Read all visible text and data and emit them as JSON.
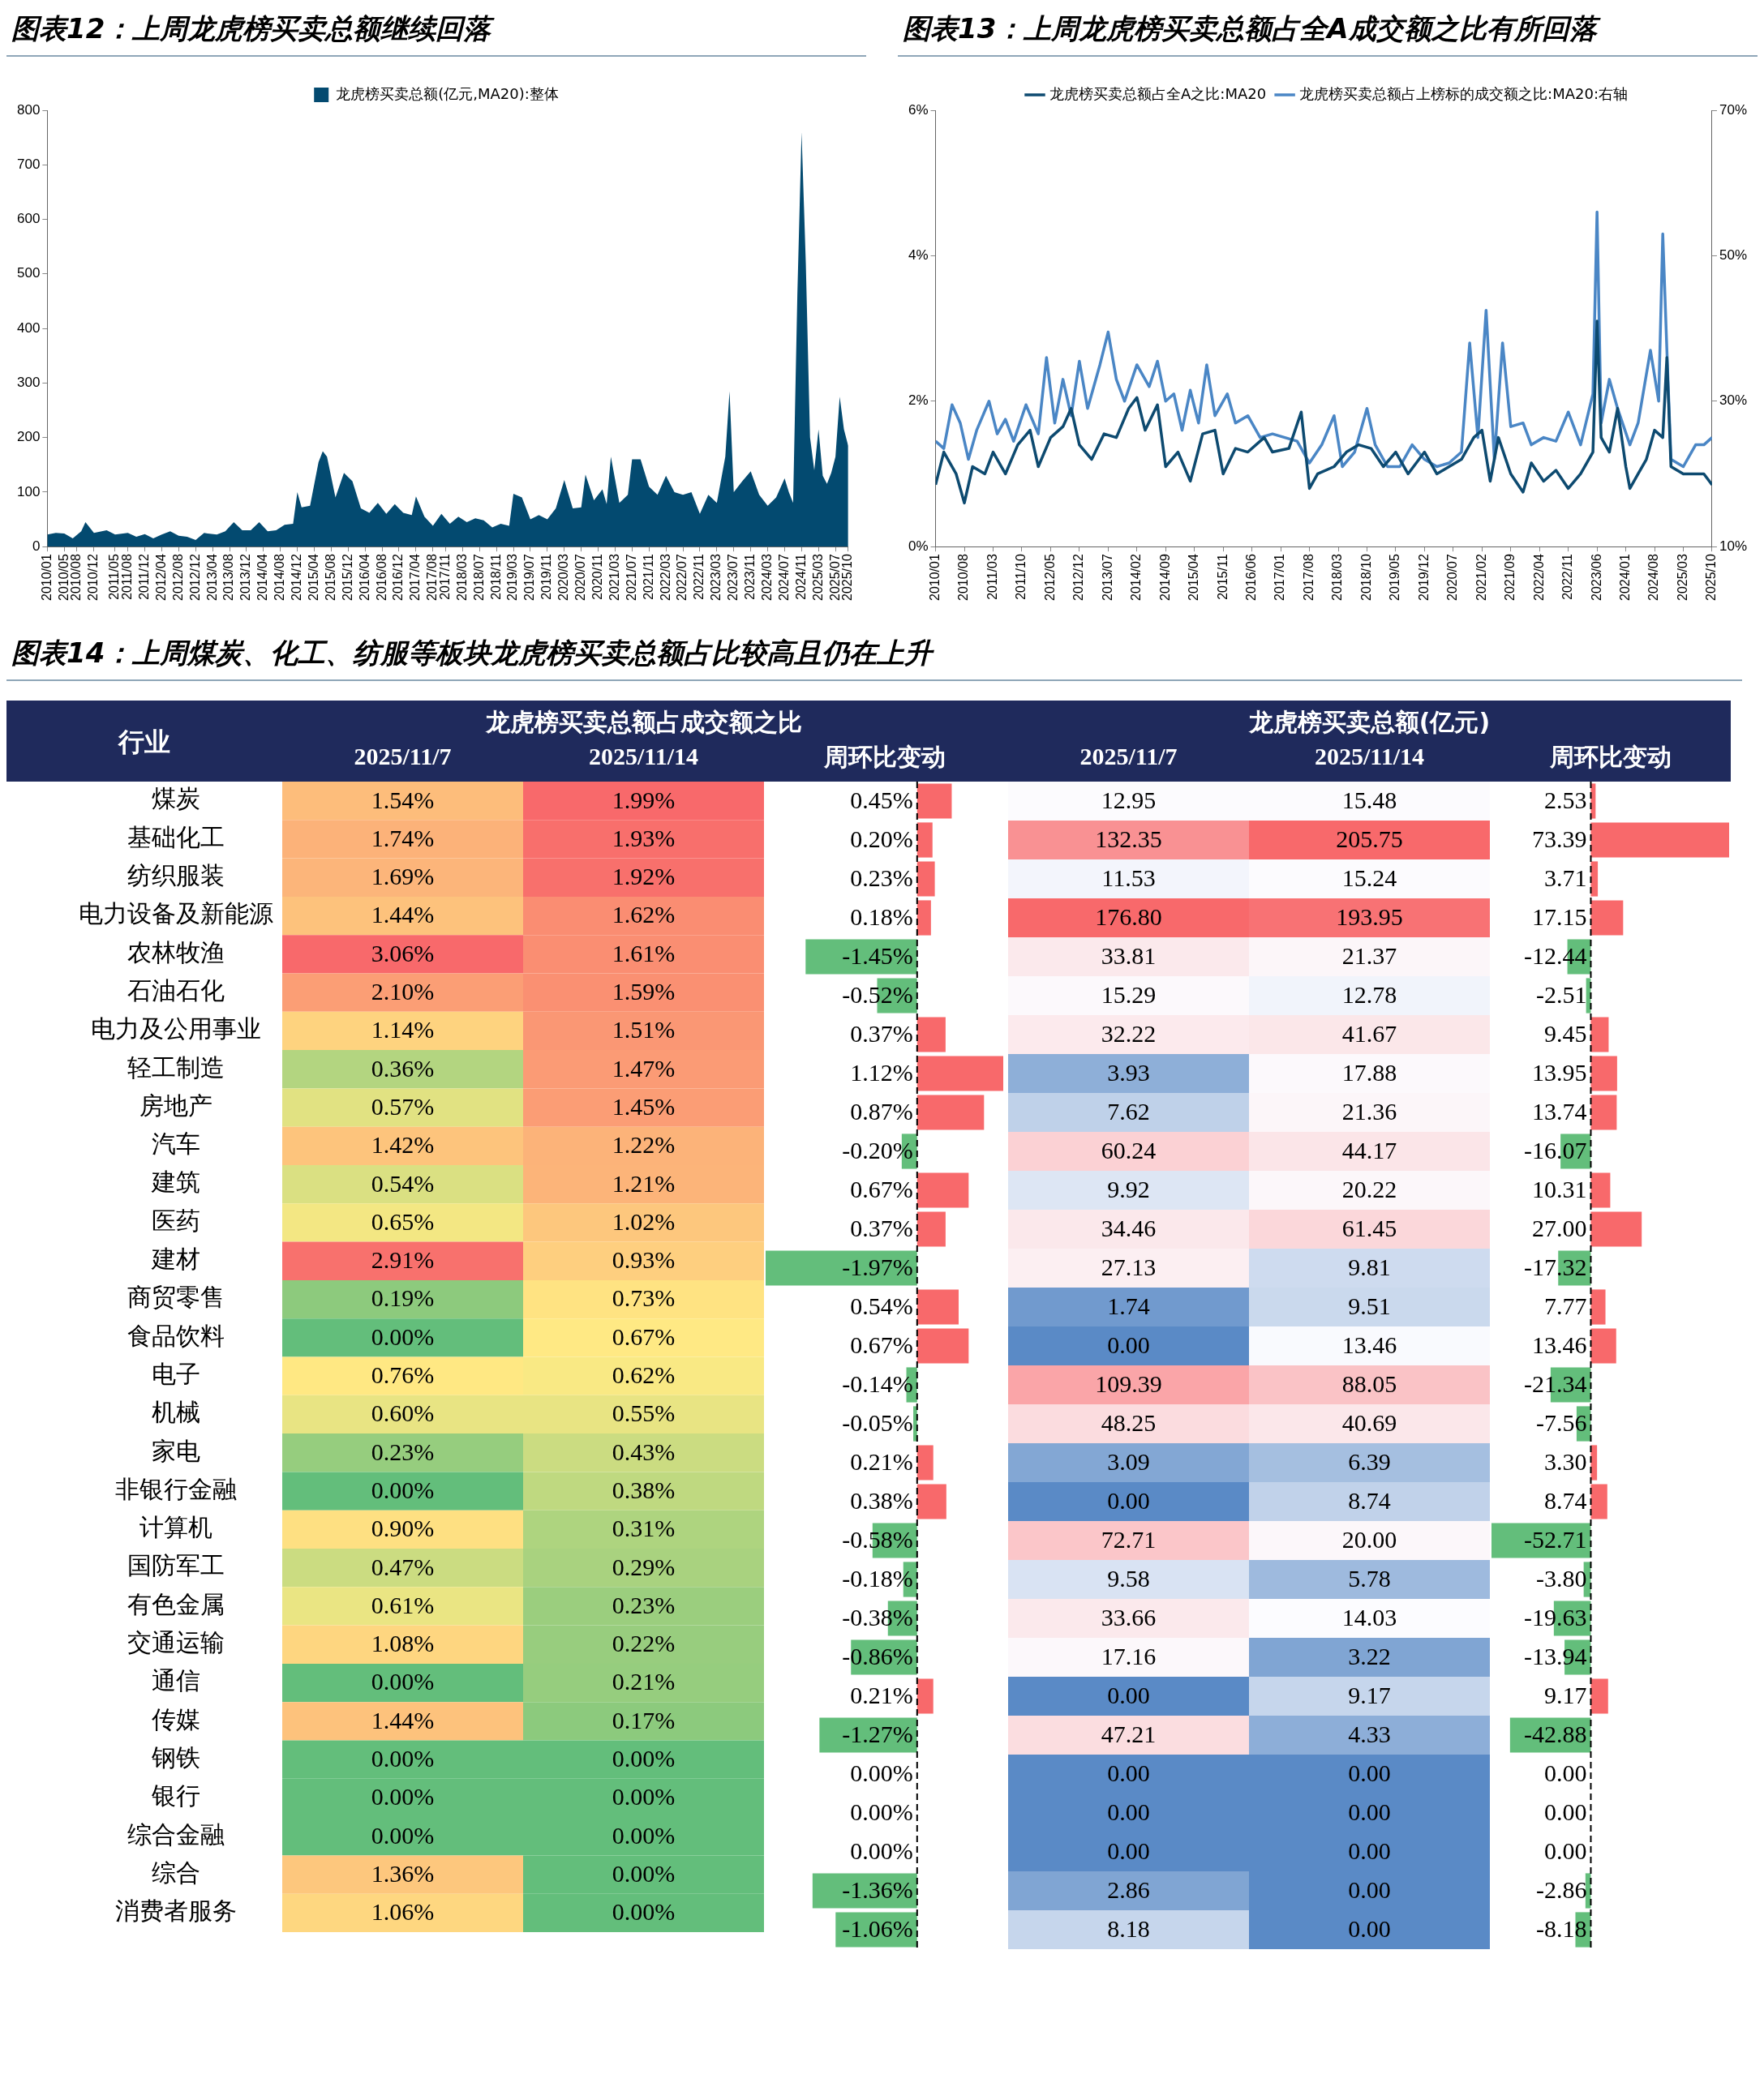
{
  "chart_data": [
    {
      "type": "area",
      "title": "图表12：上周龙虎榜买卖总额继续回落",
      "legend": "top",
      "ylim": [
        0,
        800
      ],
      "yticks": [
        0,
        100,
        200,
        300,
        400,
        500,
        600,
        700,
        800
      ],
      "xlim": [
        "2010-01",
        "2025-10"
      ],
      "xticks": [
        {
          "value": "2010-01",
          "label": "2010/01"
        },
        {
          "value": "2010-05",
          "label": "2010/05"
        },
        {
          "value": "2010-08",
          "label": "2010/08"
        },
        {
          "value": "2010-12",
          "label": "2010/12"
        },
        {
          "value": "2011-05",
          "label": "2011/05"
        },
        {
          "value": "2011-08",
          "label": "2011/08"
        },
        {
          "value": "2011-12",
          "label": "2011/12"
        },
        {
          "value": "2012-04",
          "label": "2012/04"
        },
        {
          "value": "2012-08",
          "label": "2012/08"
        },
        {
          "value": "2012-12",
          "label": "2012/12"
        },
        {
          "value": "2013-04",
          "label": "2013/04"
        },
        {
          "value": "2013-08",
          "label": "2013/08"
        },
        {
          "value": "2013-12",
          "label": "2013/12"
        },
        {
          "value": "2014-04",
          "label": "2014/04"
        },
        {
          "value": "2014-08",
          "label": "2014/08"
        },
        {
          "value": "2014-12",
          "label": "2014/12"
        },
        {
          "value": "2015-04",
          "label": "2015/04"
        },
        {
          "value": "2015-08",
          "label": "2015/08"
        },
        {
          "value": "2015-12",
          "label": "2015/12"
        },
        {
          "value": "2016-04",
          "label": "2016/04"
        },
        {
          "value": "2016-08",
          "label": "2016/08"
        },
        {
          "value": "2016-12",
          "label": "2016/12"
        },
        {
          "value": "2017-04",
          "label": "2017/04"
        },
        {
          "value": "2017-08",
          "label": "2017/08"
        },
        {
          "value": "2017-11",
          "label": "2017/11"
        },
        {
          "value": "2018-03",
          "label": "2018/03"
        },
        {
          "value": "2018-07",
          "label": "2018/07"
        },
        {
          "value": "2018-11",
          "label": "2018/11"
        },
        {
          "value": "2019-03",
          "label": "2019/03"
        },
        {
          "value": "2019-07",
          "label": "2019/07"
        },
        {
          "value": "2019-11",
          "label": "2019/11"
        },
        {
          "value": "2020-03",
          "label": "2020/03"
        },
        {
          "value": "2020-07",
          "label": "2020/07"
        },
        {
          "value": "2020-11",
          "label": "2020/11"
        },
        {
          "value": "2021-03",
          "label": "2021/03"
        },
        {
          "value": "2021-07",
          "label": "2021/07"
        },
        {
          "value": "2021-11",
          "label": "2021/11"
        },
        {
          "value": "2022-03",
          "label": "2022/03"
        },
        {
          "value": "2022-07",
          "label": "2022/07"
        },
        {
          "value": "2022-11",
          "label": "2022/11"
        },
        {
          "value": "2023-03",
          "label": "2023/03"
        },
        {
          "value": "2023-07",
          "label": "2023/07"
        },
        {
          "value": "2023-11",
          "label": "2023/11"
        },
        {
          "value": "2024-03",
          "label": "2024/03"
        },
        {
          "value": "2024-07",
          "label": "2024/07"
        },
        {
          "value": "2024-11",
          "label": "2024/11"
        },
        {
          "value": "2025-03",
          "label": "2025/03"
        },
        {
          "value": "2025-07",
          "label": "2025/07"
        },
        {
          "value": "2025-10",
          "label": "2025/10"
        }
      ],
      "x": [
        "2010-01",
        "2010-03",
        "2010-05",
        "2010-07",
        "2010-09",
        "2010-10",
        "2010-12",
        "2011-03",
        "2011-05",
        "2011-08",
        "2011-10",
        "2011-12",
        "2012-02",
        "2012-04",
        "2012-06",
        "2012-08",
        "2012-10",
        "2012-12",
        "2013-02",
        "2013-05",
        "2013-07",
        "2013-09",
        "2013-11",
        "2014-01",
        "2014-03",
        "2014-05",
        "2014-07",
        "2014-09",
        "2014-11",
        "2014-12",
        "2015-01",
        "2015-03",
        "2015-05",
        "2015-06",
        "2015-07",
        "2015-09",
        "2015-11",
        "2016-01",
        "2016-03",
        "2016-05",
        "2016-07",
        "2016-09",
        "2016-11",
        "2017-01",
        "2017-03",
        "2017-04",
        "2017-06",
        "2017-08",
        "2017-10",
        "2017-12",
        "2018-02",
        "2018-04",
        "2018-06",
        "2018-08",
        "2018-10",
        "2018-12",
        "2019-02",
        "2019-03",
        "2019-05",
        "2019-07",
        "2019-09",
        "2019-11",
        "2020-01",
        "2020-03",
        "2020-05",
        "2020-07",
        "2020-08",
        "2020-10",
        "2020-12",
        "2021-01",
        "2021-02",
        "2021-04",
        "2021-06",
        "2021-07",
        "2021-09",
        "2021-11",
        "2022-01",
        "2022-03",
        "2022-05",
        "2022-07",
        "2022-09",
        "2022-11",
        "2023-01",
        "2023-03",
        "2023-05",
        "2023-06",
        "2023-07",
        "2023-09",
        "2023-11",
        "2024-01",
        "2024-03",
        "2024-05",
        "2024-07",
        "2024-08",
        "2024-09",
        "2024-10",
        "2024-11",
        "2024-12",
        "2025-01",
        "2025-02",
        "2025-03",
        "2025-04",
        "2025-05",
        "2025-06",
        "2025-07",
        "2025-08",
        "2025-09",
        "2025-10"
      ],
      "series": [
        {
          "name": "龙虎榜买卖总额(亿元,MA20):整体",
          "color": "#034a70",
          "values": [
            22,
            25,
            24,
            15,
            28,
            45,
            25,
            30,
            22,
            25,
            18,
            23,
            15,
            22,
            28,
            20,
            18,
            12,
            25,
            22,
            28,
            45,
            30,
            30,
            45,
            28,
            30,
            40,
            42,
            100,
            72,
            75,
            155,
            175,
            165,
            90,
            135,
            120,
            70,
            62,
            80,
            60,
            78,
            62,
            58,
            92,
            55,
            38,
            60,
            42,
            55,
            45,
            52,
            48,
            35,
            42,
            38,
            97,
            90,
            50,
            58,
            50,
            70,
            122,
            70,
            72,
            132,
            85,
            105,
            78,
            165,
            80,
            95,
            160,
            160,
            110,
            95,
            130,
            100,
            95,
            100,
            60,
            95,
            80,
            165,
            285,
            100,
            120,
            138,
            95,
            75,
            90,
            125,
            100,
            80,
            460,
            760,
            520,
            200,
            140,
            215,
            130,
            115,
            135,
            165,
            275,
            215,
            185
          ]
        }
      ]
    },
    {
      "type": "line",
      "title": "图表13：上周龙虎榜买卖总额占全A成交额之比有所回落",
      "legend": "top",
      "ylim": [
        0,
        6
      ],
      "yticks": [
        {
          "value": 0,
          "label": "0%"
        },
        {
          "value": 2,
          "label": "2%"
        },
        {
          "value": 4,
          "label": "4%"
        },
        {
          "value": 6,
          "label": "6%"
        }
      ],
      "y2lim": [
        10,
        70
      ],
      "y2ticks": [
        {
          "value": 10,
          "label": "10%"
        },
        {
          "value": 30,
          "label": "30%"
        },
        {
          "value": 50,
          "label": "50%"
        },
        {
          "value": 70,
          "label": "70%"
        }
      ],
      "xlim": [
        "2010-01",
        "2025-10"
      ],
      "xticks": [
        {
          "value": "2010-01",
          "label": "2010/01"
        },
        {
          "value": "2010-08",
          "label": "2010/08"
        },
        {
          "value": "2011-03",
          "label": "2011/03"
        },
        {
          "value": "2011-10",
          "label": "2011/10"
        },
        {
          "value": "2012-05",
          "label": "2012/05"
        },
        {
          "value": "2012-12",
          "label": "2012/12"
        },
        {
          "value": "2013-07",
          "label": "2013/07"
        },
        {
          "value": "2014-02",
          "label": "2014/02"
        },
        {
          "value": "2014-09",
          "label": "2014/09"
        },
        {
          "value": "2015-04",
          "label": "2015/04"
        },
        {
          "value": "2015-11",
          "label": "2015/11"
        },
        {
          "value": "2016-06",
          "label": "2016/06"
        },
        {
          "value": "2017-01",
          "label": "2017/01"
        },
        {
          "value": "2017-08",
          "label": "2017/08"
        },
        {
          "value": "2018-03",
          "label": "2018/03"
        },
        {
          "value": "2018-10",
          "label": "2018/10"
        },
        {
          "value": "2019-05",
          "label": "2019/05"
        },
        {
          "value": "2019-12",
          "label": "2019/12"
        },
        {
          "value": "2020-07",
          "label": "2020/07"
        },
        {
          "value": "2021-02",
          "label": "2021/02"
        },
        {
          "value": "2021-09",
          "label": "2021/09"
        },
        {
          "value": "2022-04",
          "label": "2022/04"
        },
        {
          "value": "2022-11",
          "label": "2022/11"
        },
        {
          "value": "2023-06",
          "label": "2023/06"
        },
        {
          "value": "2024-01",
          "label": "2024/01"
        },
        {
          "value": "2024-08",
          "label": "2024/08"
        },
        {
          "value": "2025-03",
          "label": "2025/03"
        },
        {
          "value": "2025-10",
          "label": "2025/10"
        }
      ],
      "series": [
        {
          "name": "龙虎榜买卖总额占全A之比:MA20",
          "color": "#0d4a70",
          "x": [
            "2010-01",
            "2010-03",
            "2010-06",
            "2010-08",
            "2010-10",
            "2011-01",
            "2011-03",
            "2011-06",
            "2011-09",
            "2011-12",
            "2012-02",
            "2012-05",
            "2012-08",
            "2012-10",
            "2012-12",
            "2013-03",
            "2013-06",
            "2013-09",
            "2013-12",
            "2014-02",
            "2014-04",
            "2014-07",
            "2014-09",
            "2014-12",
            "2015-03",
            "2015-06",
            "2015-09",
            "2015-11",
            "2016-02",
            "2016-05",
            "2016-09",
            "2016-11",
            "2017-03",
            "2017-06",
            "2017-08",
            "2017-10",
            "2018-02",
            "2018-05",
            "2018-08",
            "2018-11",
            "2019-02",
            "2019-05",
            "2019-08",
            "2019-12",
            "2020-03",
            "2020-06",
            "2020-09",
            "2020-12",
            "2021-02",
            "2021-04",
            "2021-06",
            "2021-09",
            "2021-12",
            "2022-02",
            "2022-05",
            "2022-08",
            "2022-11",
            "2023-02",
            "2023-05",
            "2023-06",
            "2023-07",
            "2023-09",
            "2023-11",
            "2024-01",
            "2024-02",
            "2024-04",
            "2024-06",
            "2024-08",
            "2024-10",
            "2024-11",
            "2024-12",
            "2025-03",
            "2025-06",
            "2025-08",
            "2025-10"
          ],
          "values": [
            0.85,
            1.3,
            1.0,
            0.6,
            1.1,
            1.0,
            1.3,
            1.0,
            1.4,
            1.6,
            1.1,
            1.5,
            1.65,
            1.9,
            1.4,
            1.2,
            1.55,
            1.5,
            1.9,
            2.05,
            1.6,
            1.95,
            1.1,
            1.3,
            0.9,
            1.55,
            1.6,
            1.0,
            1.35,
            1.3,
            1.5,
            1.3,
            1.35,
            1.85,
            0.8,
            1.0,
            1.1,
            1.3,
            1.4,
            1.35,
            1.1,
            1.3,
            1.0,
            1.3,
            1.0,
            1.1,
            1.2,
            1.5,
            1.6,
            0.9,
            1.5,
            1.0,
            0.75,
            1.15,
            0.9,
            1.05,
            0.8,
            1.0,
            1.3,
            3.1,
            1.5,
            1.3,
            1.9,
            1.1,
            0.8,
            1.0,
            1.2,
            1.6,
            1.5,
            2.6,
            1.1,
            1.0,
            1.0,
            1.0,
            0.85
          ]
        },
        {
          "name": "龙虎榜买卖总额占上榜标的成交额之比:MA20:右轴",
          "color": "#4a86c5",
          "axis": "y2",
          "x": [
            "2010-01",
            "2010-03",
            "2010-05",
            "2010-07",
            "2010-09",
            "2010-11",
            "2011-02",
            "2011-04",
            "2011-06",
            "2011-08",
            "2011-11",
            "2012-02",
            "2012-04",
            "2012-06",
            "2012-08",
            "2012-10",
            "2012-12",
            "2013-02",
            "2013-05",
            "2013-07",
            "2013-09",
            "2013-11",
            "2014-02",
            "2014-05",
            "2014-07",
            "2014-09",
            "2014-11",
            "2015-01",
            "2015-03",
            "2015-05",
            "2015-07",
            "2015-09",
            "2015-12",
            "2016-02",
            "2016-05",
            "2016-08",
            "2016-11",
            "2017-02",
            "2017-05",
            "2017-08",
            "2017-11",
            "2018-02",
            "2018-04",
            "2018-07",
            "2018-10",
            "2018-12",
            "2019-03",
            "2019-06",
            "2019-09",
            "2019-12",
            "2020-03",
            "2020-06",
            "2020-09",
            "2020-11",
            "2021-01",
            "2021-03",
            "2021-05",
            "2021-07",
            "2021-09",
            "2021-12",
            "2022-02",
            "2022-05",
            "2022-08",
            "2022-11",
            "2023-02",
            "2023-05",
            "2023-06",
            "2023-07",
            "2023-09",
            "2023-11",
            "2024-02",
            "2024-04",
            "2024-07",
            "2024-09",
            "2024-10",
            "2024-11",
            "2024-12",
            "2025-03",
            "2025-06",
            "2025-08",
            "2025-10"
          ],
          "values": [
            24.5,
            23.5,
            29.5,
            27,
            22,
            26,
            30,
            25.5,
            27.5,
            24.5,
            29.5,
            25.5,
            36,
            27,
            33,
            28,
            35.5,
            29,
            35,
            39.5,
            33,
            30,
            35,
            32,
            35.5,
            30,
            31,
            26,
            31.5,
            27,
            35,
            28,
            31,
            27,
            28,
            25,
            25.5,
            25,
            24.5,
            21.5,
            24,
            28,
            21,
            23,
            29,
            24,
            21,
            21,
            24,
            22,
            21,
            21.5,
            23,
            38,
            25,
            42.5,
            22,
            38,
            26.5,
            27,
            24,
            25,
            24.5,
            28.5,
            24,
            31,
            56,
            27,
            33,
            29,
            24,
            27,
            37,
            30,
            53,
            37,
            22,
            21,
            24,
            24,
            25
          ]
        }
      ]
    },
    {
      "type": "heatmap",
      "title": "图表14：上周煤炭、化工、纺服等板块龙虎榜买卖总额占比较高且仍在上升",
      "subtitle": "龙虎榜买卖总额占成交额之比",
      "ylabel": "行业",
      "colors": [
        "#63be7b",
        "#ffeb84",
        "#f8696b"
      ],
      "categories": [
        "2025/11/7",
        "2025/11/14"
      ],
      "y_categories": [
        "煤炭",
        "基础化工",
        "纺织服装",
        "电力设备及新能源",
        "农林牧渔",
        "石油石化",
        "电力及公用事业",
        "轻工制造",
        "房地产",
        "汽车",
        "建筑",
        "医药",
        "建材",
        "商贸零售",
        "食品饮料",
        "电子",
        "机械",
        "家电",
        "非银行金融",
        "计算机",
        "国防军工",
        "有色金属",
        "交通运输",
        "通信",
        "传媒",
        "钢铁",
        "银行",
        "综合金融",
        "综合",
        "消费者服务"
      ],
      "cells": [
        [
          1.54,
          1.99
        ],
        [
          1.74,
          1.93
        ],
        [
          1.69,
          1.92
        ],
        [
          1.44,
          1.62
        ],
        [
          3.06,
          1.61
        ],
        [
          2.1,
          1.59
        ],
        [
          1.14,
          1.51
        ],
        [
          0.36,
          1.47
        ],
        [
          0.57,
          1.45
        ],
        [
          1.42,
          1.22
        ],
        [
          0.54,
          1.21
        ],
        [
          0.65,
          1.02
        ],
        [
          2.91,
          0.93
        ],
        [
          0.19,
          0.73
        ],
        [
          0,
          0.67
        ],
        [
          0.76,
          0.62
        ],
        [
          0.6,
          0.55
        ],
        [
          0.23,
          0.43
        ],
        [
          0,
          0.38
        ],
        [
          0.9,
          0.31
        ],
        [
          0.47,
          0.29
        ],
        [
          0.61,
          0.23
        ],
        [
          1.08,
          0.22
        ],
        [
          0,
          0.21
        ],
        [
          1.44,
          0.17
        ],
        [
          0,
          0
        ],
        [
          0,
          0
        ],
        [
          0,
          0
        ],
        [
          1.36,
          0
        ],
        [
          1.06,
          0
        ]
      ],
      "cell_labels": [
        [
          "1.54%",
          "1.99%"
        ],
        [
          "1.74%",
          "1.93%"
        ],
        [
          "1.69%",
          "1.92%"
        ],
        [
          "1.44%",
          "1.62%"
        ],
        [
          "3.06%",
          "1.61%"
        ],
        [
          "2.10%",
          "1.59%"
        ],
        [
          "1.14%",
          "1.51%"
        ],
        [
          "0.36%",
          "1.47%"
        ],
        [
          "0.57%",
          "1.45%"
        ],
        [
          "1.42%",
          "1.22%"
        ],
        [
          "0.54%",
          "1.21%"
        ],
        [
          "0.65%",
          "1.02%"
        ],
        [
          "2.91%",
          "0.93%"
        ],
        [
          "0.19%",
          "0.73%"
        ],
        [
          "0.00%",
          "0.67%"
        ],
        [
          "0.76%",
          "0.62%"
        ],
        [
          "0.60%",
          "0.55%"
        ],
        [
          "0.23%",
          "0.43%"
        ],
        [
          "0.00%",
          "0.38%"
        ],
        [
          "0.90%",
          "0.31%"
        ],
        [
          "0.47%",
          "0.29%"
        ],
        [
          "0.61%",
          "0.23%"
        ],
        [
          "1.08%",
          "0.22%"
        ],
        [
          "0.00%",
          "0.21%"
        ],
        [
          "1.44%",
          "0.17%"
        ],
        [
          "0.00%",
          "0.00%"
        ],
        [
          "0.00%",
          "0.00%"
        ],
        [
          "0.00%",
          "0.00%"
        ],
        [
          "1.36%",
          "0.00%"
        ],
        [
          "1.06%",
          "0.00%"
        ]
      ]
    },
    {
      "type": "bar",
      "orientation": "horizontal",
      "xlabel": "周环比变动",
      "tick_labels": false,
      "ref_lines": [
        {
          "axis": "x",
          "value": 0,
          "line_style": "dashed",
          "color": "#000000"
        }
      ],
      "categories": [
        null,
        null,
        null,
        null,
        null,
        null,
        null,
        null,
        null,
        null,
        null,
        null,
        null,
        null,
        null,
        null,
        null,
        null,
        null,
        null,
        null,
        null,
        null,
        null,
        null,
        null,
        null,
        null,
        null,
        null
      ],
      "values": [
        0.45,
        0.2,
        0.23,
        0.18,
        -1.45,
        -0.52,
        0.37,
        1.12,
        0.87,
        -0.2,
        0.67,
        0.37,
        -1.97,
        0.54,
        0.67,
        -0.14,
        -0.05,
        0.21,
        0.38,
        -0.58,
        -0.18,
        -0.38,
        -0.86,
        0.21,
        -1.27,
        0,
        0,
        0,
        -1.36,
        -1.06
      ],
      "value_labels": [
        "0.45%",
        "0.20%",
        "0.23%",
        "0.18%",
        "-1.45%",
        "-0.52%",
        "0.37%",
        "1.12%",
        "0.87%",
        "-0.20%",
        "0.67%",
        "0.37%",
        "-1.97%",
        "0.54%",
        "0.67%",
        "-0.14%",
        "-0.05%",
        "0.21%",
        "0.38%",
        "-0.58%",
        "-0.18%",
        "-0.38%",
        "-0.86%",
        "0.21%",
        "-1.27%",
        "0.00%",
        "0.00%",
        "0.00%",
        "-1.36%",
        "-1.06%"
      ],
      "colors": [
        "#f8696b",
        "#f8696b",
        "#f8696b",
        "#f8696b",
        "#63be7b",
        "#63be7b",
        "#f8696b",
        "#f8696b",
        "#f8696b",
        "#63be7b",
        "#f8696b",
        "#f8696b",
        "#63be7b",
        "#f8696b",
        "#f8696b",
        "#63be7b",
        "#63be7b",
        "#f8696b",
        "#f8696b",
        "#63be7b",
        "#63be7b",
        "#63be7b",
        "#63be7b",
        "#f8696b",
        "#63be7b",
        "#f8696b",
        "#f8696b",
        "#f8696b",
        "#63be7b",
        "#63be7b"
      ]
    },
    {
      "type": "heatmap",
      "title": "龙虎榜买卖总额(亿元)",
      "tick_labels": "x",
      "colors": [
        "#5a8ac6",
        "#fcfcff",
        "#f8696b"
      ],
      "categories": [
        "2025/11/7",
        "2025/11/14"
      ],
      "y_categories": [
        null,
        null,
        null,
        null,
        null,
        null,
        null,
        null,
        null,
        null,
        null,
        null,
        null,
        null,
        null,
        null,
        null,
        null,
        null,
        null,
        null,
        null,
        null,
        null,
        null,
        null,
        null,
        null,
        null,
        null
      ],
      "cells": [
        [
          12.95,
          15.48
        ],
        [
          132.35,
          205.75
        ],
        [
          11.53,
          15.24
        ],
        [
          176.8,
          193.95
        ],
        [
          33.81,
          21.37
        ],
        [
          15.29,
          12.78
        ],
        [
          32.22,
          41.67
        ],
        [
          3.93,
          17.88
        ],
        [
          7.62,
          21.36
        ],
        [
          60.24,
          44.17
        ],
        [
          9.92,
          20.22
        ],
        [
          34.46,
          61.45
        ],
        [
          27.13,
          9.81
        ],
        [
          1.74,
          9.51
        ],
        [
          0,
          13.46
        ],
        [
          109.39,
          88.05
        ],
        [
          48.25,
          40.69
        ],
        [
          3.09,
          6.39
        ],
        [
          0,
          8.74
        ],
        [
          72.71,
          20
        ],
        [
          9.58,
          5.78
        ],
        [
          33.66,
          14.03
        ],
        [
          17.16,
          3.22
        ],
        [
          0,
          9.17
        ],
        [
          47.21,
          4.33
        ],
        [
          0,
          0
        ],
        [
          0,
          0
        ],
        [
          0,
          0
        ],
        [
          2.86,
          0
        ],
        [
          8.18,
          0
        ]
      ],
      "cell_labels": [
        [
          "12.95",
          "15.48"
        ],
        [
          "132.35",
          "205.75"
        ],
        [
          "11.53",
          "15.24"
        ],
        [
          "176.80",
          "193.95"
        ],
        [
          "33.81",
          "21.37"
        ],
        [
          "15.29",
          "12.78"
        ],
        [
          "32.22",
          "41.67"
        ],
        [
          "3.93",
          "17.88"
        ],
        [
          "7.62",
          "21.36"
        ],
        [
          "60.24",
          "44.17"
        ],
        [
          "9.92",
          "20.22"
        ],
        [
          "34.46",
          "61.45"
        ],
        [
          "27.13",
          "9.81"
        ],
        [
          "1.74",
          "9.51"
        ],
        [
          "0.00",
          "13.46"
        ],
        [
          "109.39",
          "88.05"
        ],
        [
          "48.25",
          "40.69"
        ],
        [
          "3.09",
          "6.39"
        ],
        [
          "0.00",
          "8.74"
        ],
        [
          "72.71",
          "20.00"
        ],
        [
          "9.58",
          "5.78"
        ],
        [
          "33.66",
          "14.03"
        ],
        [
          "17.16",
          "3.22"
        ],
        [
          "0.00",
          "9.17"
        ],
        [
          "47.21",
          "4.33"
        ],
        [
          "0.00",
          "0.00"
        ],
        [
          "0.00",
          "0.00"
        ],
        [
          "0.00",
          "0.00"
        ],
        [
          "2.86",
          "0.00"
        ],
        [
          "8.18",
          "0.00"
        ]
      ]
    },
    {
      "type": "bar",
      "orientation": "horizontal",
      "xlabel": "周环比变动",
      "tick_labels": false,
      "ref_lines": [
        {
          "axis": "x",
          "value": 0,
          "line_style": "dashed",
          "color": "#000000"
        }
      ],
      "categories": [
        null,
        null,
        null,
        null,
        null,
        null,
        null,
        null,
        null,
        null,
        null,
        null,
        null,
        null,
        null,
        null,
        null,
        null,
        null,
        null,
        null,
        null,
        null,
        null,
        null,
        null,
        null,
        null,
        null,
        null
      ],
      "values": [
        2.53,
        73.39,
        3.71,
        17.15,
        -12.44,
        -2.51,
        9.45,
        13.95,
        13.74,
        -16.07,
        10.31,
        27,
        -17.32,
        7.77,
        13.46,
        -21.34,
        -7.56,
        3.3,
        8.74,
        -52.71,
        -3.8,
        -19.63,
        -13.94,
        9.17,
        -42.88,
        0,
        0,
        0,
        -2.86,
        -8.18
      ],
      "value_labels": [
        "2.53",
        "73.39",
        "3.71",
        "17.15",
        "-12.44",
        "-2.51",
        "9.45",
        "13.95",
        "13.74",
        "-16.07",
        "10.31",
        "27.00",
        "-17.32",
        "7.77",
        "13.46",
        "-21.34",
        "-7.56",
        "3.30",
        "8.74",
        "-52.71",
        "-3.80",
        "-19.63",
        "-13.94",
        "9.17",
        "-42.88",
        "0.00",
        "0.00",
        "0.00",
        "-2.86",
        "-8.18"
      ],
      "colors": [
        "#f8696b",
        "#f8696b",
        "#f8696b",
        "#f8696b",
        "#63be7b",
        "#63be7b",
        "#f8696b",
        "#f8696b",
        "#f8696b",
        "#63be7b",
        "#f8696b",
        "#f8696b",
        "#63be7b",
        "#f8696b",
        "#f8696b",
        "#63be7b",
        "#63be7b",
        "#f8696b",
        "#f8696b",
        "#63be7b",
        "#63be7b",
        "#63be7b",
        "#63be7b",
        "#f8696b",
        "#63be7b",
        "#f8696b",
        "#f8696b",
        "#f8696b",
        "#63be7b",
        "#63be7b"
      ]
    }
  ]
}
